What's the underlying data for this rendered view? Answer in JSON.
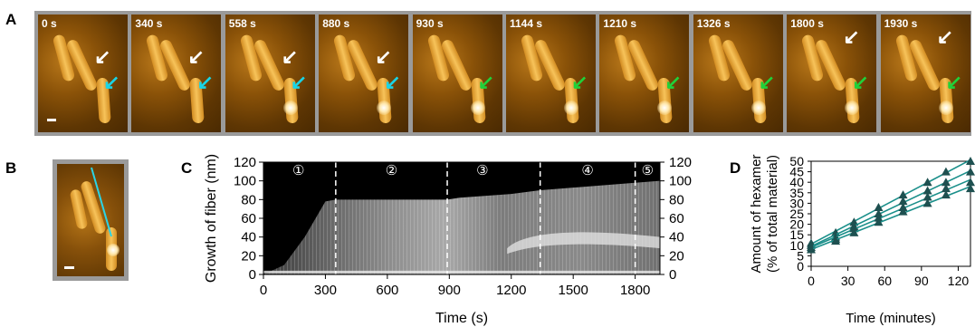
{
  "panel_letters": {
    "a": "A",
    "b": "B",
    "c": "C",
    "d": "D"
  },
  "frames": [
    {
      "time": "0 s",
      "arrows": [
        "white",
        "cyan"
      ]
    },
    {
      "time": "340 s",
      "arrows": [
        "white",
        "cyan"
      ]
    },
    {
      "time": "558 s",
      "arrows": [
        "white",
        "cyan"
      ]
    },
    {
      "time": "880 s",
      "arrows": [
        "white",
        "cyan"
      ]
    },
    {
      "time": "930 s",
      "arrows": [
        "green"
      ]
    },
    {
      "time": "1144 s",
      "arrows": [
        "green"
      ]
    },
    {
      "time": "1210 s",
      "arrows": [
        "green"
      ]
    },
    {
      "time": "1326 s",
      "arrows": [
        "green"
      ]
    },
    {
      "time": "1800 s",
      "arrows": [
        "white",
        "green"
      ]
    },
    {
      "time": "1930 s",
      "arrows": [
        "white",
        "green"
      ]
    }
  ],
  "colors": {
    "white_arrow": "#ffffff",
    "cyan_arrow": "#19d4e6",
    "green_arrow": "#1fd13a",
    "fit_line": "#1a8f8a",
    "marker": "#1e5050"
  },
  "chart_data": [
    {
      "type": "heatmap",
      "panel": "C",
      "xlabel": "Time (s)",
      "ylabel": "Growth of fiber (nm)",
      "xlim": [
        0,
        1920
      ],
      "ylim": [
        0,
        120
      ],
      "xticks": [
        0,
        300,
        600,
        900,
        1200,
        1500,
        1800
      ],
      "yticks": [
        0,
        20,
        40,
        60,
        80,
        100,
        120
      ],
      "right_yticks": [
        0,
        20,
        40,
        60,
        80,
        100,
        120
      ],
      "phase_boundaries": [
        350,
        890,
        1340,
        1800
      ],
      "phases": [
        {
          "label": "①",
          "x": 170
        },
        {
          "label": "②",
          "x": 620
        },
        {
          "label": "③",
          "x": 1060
        },
        {
          "label": "④",
          "x": 1570
        },
        {
          "label": "⑤",
          "x": 1860
        }
      ],
      "growth_front": [
        [
          0,
          0
        ],
        [
          100,
          10
        ],
        [
          200,
          40
        ],
        [
          300,
          78
        ],
        [
          350,
          80
        ],
        [
          890,
          80
        ],
        [
          950,
          82
        ],
        [
          1200,
          86
        ],
        [
          1340,
          90
        ],
        [
          1800,
          98
        ],
        [
          1920,
          100
        ]
      ]
    },
    {
      "type": "scatter",
      "panel": "D",
      "xlabel": "Time (minutes)",
      "ylabel": "Amount of hexamer (% of total material)",
      "xlim": [
        0,
        130
      ],
      "ylim": [
        0,
        50
      ],
      "xticks": [
        0,
        30,
        60,
        90,
        120
      ],
      "yticks": [
        0,
        5,
        10,
        15,
        20,
        25,
        30,
        35,
        40,
        45,
        50
      ],
      "x": [
        0,
        20,
        35,
        55,
        75,
        95,
        110,
        130
      ],
      "series": [
        {
          "values": [
            11,
            16,
            21,
            28,
            34,
            40,
            45,
            50
          ]
        },
        {
          "values": [
            10,
            14,
            19,
            25,
            31,
            36,
            40,
            45
          ]
        },
        {
          "values": [
            9,
            13,
            18,
            23,
            28,
            33,
            37,
            40
          ]
        },
        {
          "values": [
            8,
            12,
            16,
            21,
            26,
            30,
            34,
            37
          ]
        }
      ]
    }
  ]
}
